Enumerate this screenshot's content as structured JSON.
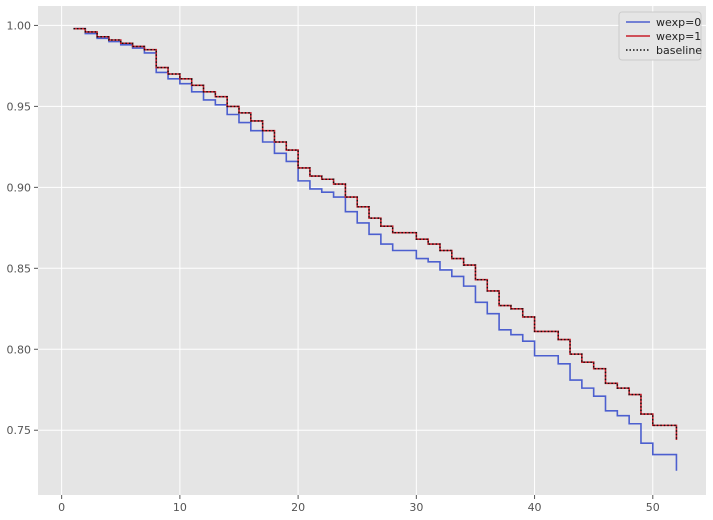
{
  "chart_data": {
    "type": "line",
    "title": "",
    "xlabel": "",
    "ylabel": "",
    "xlim": [
      -2,
      54.5
    ],
    "ylim": [
      0.71,
      1.012
    ],
    "xticks": [
      0,
      10,
      20,
      30,
      40,
      50
    ],
    "yticks": [
      0.75,
      0.8,
      0.85,
      0.9,
      0.95,
      1.0
    ],
    "xtick_labels": [
      "0",
      "10",
      "20",
      "30",
      "40",
      "50"
    ],
    "ytick_labels": [
      "0.75",
      "0.80",
      "0.85",
      "0.90",
      "0.95",
      "1.00"
    ],
    "grid": true,
    "legend_position": "top-right",
    "background": "#e5e5e5",
    "series": [
      {
        "name": "wexp=0",
        "color": "#4c5fcf",
        "style": "solid",
        "step": true,
        "x": [
          1,
          2,
          3,
          4,
          5,
          6,
          7,
          8,
          9,
          10,
          11,
          12,
          13,
          14,
          15,
          16,
          17,
          18,
          19,
          20,
          21,
          22,
          23,
          24,
          25,
          26,
          27,
          28,
          29,
          30,
          31,
          32,
          33,
          34,
          35,
          36,
          37,
          38,
          39,
          40,
          41,
          42,
          43,
          44,
          45,
          46,
          47,
          48,
          49,
          50,
          51,
          52
        ],
        "y": [
          0.998,
          0.995,
          0.992,
          0.99,
          0.988,
          0.986,
          0.983,
          0.971,
          0.967,
          0.964,
          0.959,
          0.954,
          0.951,
          0.945,
          0.94,
          0.935,
          0.928,
          0.921,
          0.916,
          0.904,
          0.899,
          0.897,
          0.894,
          0.885,
          0.878,
          0.871,
          0.865,
          0.861,
          0.861,
          0.856,
          0.854,
          0.849,
          0.845,
          0.839,
          0.829,
          0.822,
          0.812,
          0.809,
          0.805,
          0.796,
          0.796,
          0.791,
          0.781,
          0.776,
          0.771,
          0.762,
          0.759,
          0.754,
          0.742,
          0.735,
          0.735,
          0.725
        ]
      },
      {
        "name": "wexp=1",
        "color": "#c81e2b",
        "style": "solid",
        "step": true,
        "x": [
          1,
          2,
          3,
          4,
          5,
          6,
          7,
          8,
          9,
          10,
          11,
          12,
          13,
          14,
          15,
          16,
          17,
          18,
          19,
          20,
          21,
          22,
          23,
          24,
          25,
          26,
          27,
          28,
          29,
          30,
          31,
          32,
          33,
          34,
          35,
          36,
          37,
          38,
          39,
          40,
          41,
          42,
          43,
          44,
          45,
          46,
          47,
          48,
          49,
          50,
          51,
          52
        ],
        "y": [
          0.998,
          0.996,
          0.993,
          0.991,
          0.989,
          0.987,
          0.985,
          0.974,
          0.97,
          0.967,
          0.963,
          0.959,
          0.956,
          0.95,
          0.946,
          0.941,
          0.935,
          0.928,
          0.923,
          0.912,
          0.907,
          0.905,
          0.902,
          0.894,
          0.888,
          0.881,
          0.876,
          0.872,
          0.872,
          0.868,
          0.865,
          0.861,
          0.856,
          0.852,
          0.843,
          0.836,
          0.827,
          0.825,
          0.82,
          0.811,
          0.811,
          0.806,
          0.797,
          0.792,
          0.788,
          0.779,
          0.776,
          0.772,
          0.76,
          0.753,
          0.753,
          0.744
        ]
      },
      {
        "name": "baseline",
        "color": "#111111",
        "style": "dotted",
        "step": true,
        "x": [
          1,
          2,
          3,
          4,
          5,
          6,
          7,
          8,
          9,
          10,
          11,
          12,
          13,
          14,
          15,
          16,
          17,
          18,
          19,
          20,
          21,
          22,
          23,
          24,
          25,
          26,
          27,
          28,
          29,
          30,
          31,
          32,
          33,
          34,
          35,
          36,
          37,
          38,
          39,
          40,
          41,
          42,
          43,
          44,
          45,
          46,
          47,
          48,
          49,
          50,
          51,
          52
        ],
        "y": [
          0.998,
          0.996,
          0.993,
          0.991,
          0.989,
          0.987,
          0.985,
          0.974,
          0.97,
          0.967,
          0.963,
          0.959,
          0.956,
          0.95,
          0.946,
          0.941,
          0.935,
          0.928,
          0.923,
          0.912,
          0.907,
          0.905,
          0.902,
          0.894,
          0.888,
          0.881,
          0.876,
          0.872,
          0.872,
          0.868,
          0.865,
          0.861,
          0.856,
          0.852,
          0.843,
          0.836,
          0.827,
          0.825,
          0.82,
          0.811,
          0.811,
          0.806,
          0.797,
          0.792,
          0.788,
          0.779,
          0.776,
          0.772,
          0.76,
          0.753,
          0.753,
          0.744
        ]
      }
    ]
  }
}
